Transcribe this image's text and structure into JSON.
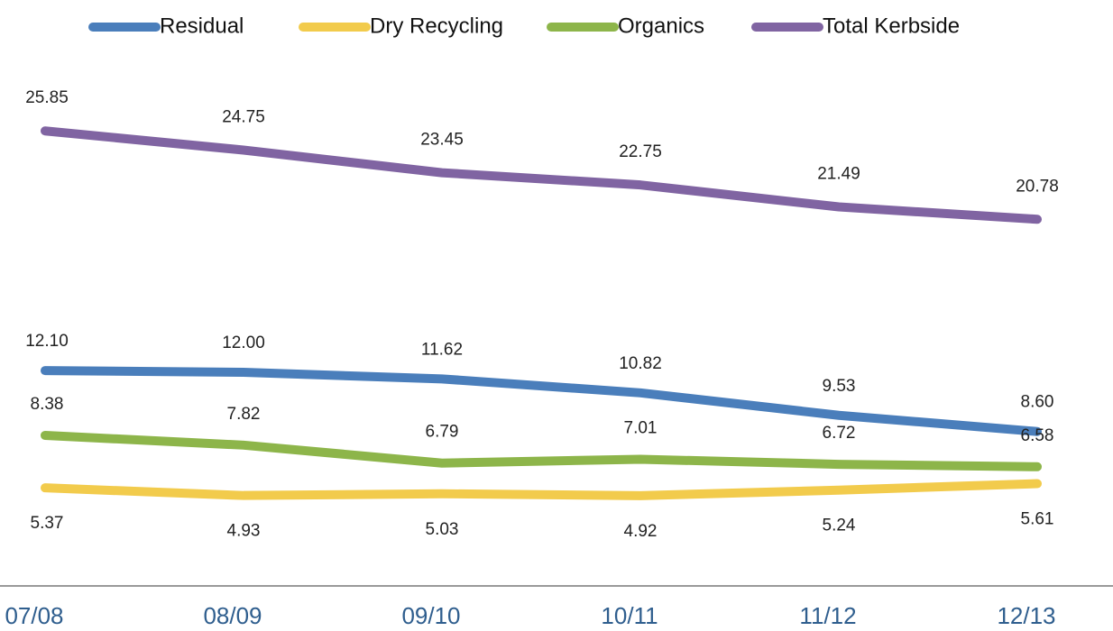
{
  "chart_data": {
    "type": "line",
    "categories": [
      "07/08",
      "08/09",
      "09/10",
      "10/11",
      "11/12",
      "12/13"
    ],
    "ylim": [
      0,
      30
    ],
    "legend": "top",
    "series": [
      {
        "name": "Residual",
        "color": "#4a7ebb",
        "values": [
          12.1,
          12.0,
          11.62,
          10.82,
          9.53,
          8.6
        ],
        "value_labels": [
          "12.10",
          "12.00",
          "11.62",
          "10.82",
          "9.53",
          "8.60"
        ]
      },
      {
        "name": "Dry Recycling",
        "color": "#f2cb4c",
        "values": [
          5.37,
          4.93,
          5.03,
          4.92,
          5.24,
          5.61
        ],
        "value_labels": [
          "5.37",
          "4.93",
          "5.03",
          "4.92",
          "5.24",
          "5.61"
        ]
      },
      {
        "name": "Organics",
        "color": "#8db54a",
        "values": [
          8.38,
          7.82,
          6.79,
          7.01,
          6.72,
          6.58
        ],
        "value_labels": [
          "8.38",
          "7.82",
          "6.79",
          "7.01",
          "6.72",
          "6.58"
        ]
      },
      {
        "name": "Total Kerbside",
        "color": "#8064a2",
        "values": [
          25.85,
          24.75,
          23.45,
          22.75,
          21.49,
          20.78
        ],
        "value_labels": [
          "25.85",
          "24.75",
          "23.45",
          "22.75",
          "21.49",
          "20.78"
        ]
      }
    ]
  }
}
